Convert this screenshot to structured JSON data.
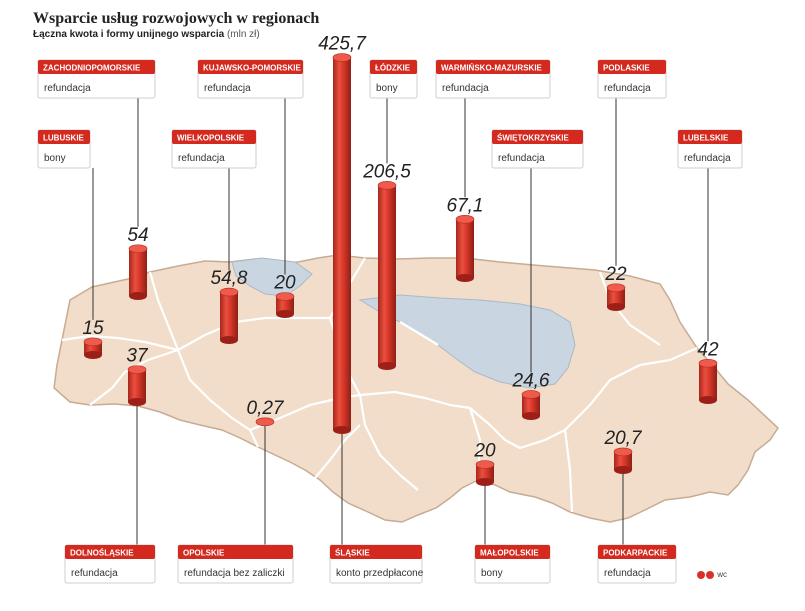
{
  "header": {
    "title": "Wsparcie usług rozwojowych w regionach",
    "subtitle_main": "Łączna kwota i formy unijnego wsparcia",
    "subtitle_unit": "(mln zł)"
  },
  "credit": "wc",
  "colors": {
    "bar": "#d9382b",
    "bar_dark": "#9c2017",
    "bar_top": "#ee5a4b",
    "land": "#f1ddc9",
    "land_edge": "#c7ab94",
    "lakes": "#c9d6e2",
    "label_head": "#d4291f"
  },
  "chart_data": {
    "type": "bar",
    "title": "Wsparcie usług rozwojowych w regionach",
    "subtitle": "Łączna kwota i formy unijnego wsparcia (mln zł)",
    "unit": "mln zł",
    "categories": [
      "Zachodniopomorskie",
      "Lubuskie",
      "Kujawsko-pomorskie",
      "Wielkopolskie",
      "Łódzkie",
      "Śląskie",
      "Warmińsko-mazurskie",
      "Świętokrzyskie",
      "Podlaskie",
      "Lubelskie",
      "Dolnośląskie",
      "Opolskie",
      "Małopolskie",
      "Podkarpackie"
    ],
    "values": [
      54,
      15,
      20,
      54.8,
      206.5,
      425.7,
      67.1,
      24.6,
      22,
      42,
      37,
      0.27,
      20,
      20.7
    ],
    "regions": [
      {
        "id": "zachodniopomorskie",
        "name": "ZACHODNIOPOMORSKIE",
        "form": "refundacja",
        "value": 54,
        "value_label": "54"
      },
      {
        "id": "lubuskie",
        "name": "LUBUSKIE",
        "form": "bony",
        "value": 15,
        "value_label": "15"
      },
      {
        "id": "kujawsko-pomorskie",
        "name": "KUJAWSKO-POMORSKIE",
        "form": "refundacja",
        "value": 20,
        "value_label": "20"
      },
      {
        "id": "wielkopolskie",
        "name": "WIELKOPOLSKIE",
        "form": "refundacja",
        "value": 54.8,
        "value_label": "54,8"
      },
      {
        "id": "lodzkie",
        "name": "ŁÓDZKIE",
        "form": "bony",
        "value": 206.5,
        "value_label": "206,5"
      },
      {
        "id": "slaskie",
        "name": "ŚLĄSKIE",
        "form": "konto przedpłacone",
        "value": 425.7,
        "value_label": "425,7"
      },
      {
        "id": "warminsko-mazurskie",
        "name": "WARMIŃSKO-MAZURSKIE",
        "form": "refundacja",
        "value": 67.1,
        "value_label": "67,1"
      },
      {
        "id": "swietokrzyskie",
        "name": "ŚWIĘTOKRZYSKIE",
        "form": "refundacja",
        "value": 24.6,
        "value_label": "24,6"
      },
      {
        "id": "podlaskie",
        "name": "PODLASKIE",
        "form": "refundacja",
        "value": 22,
        "value_label": "22"
      },
      {
        "id": "lubelskie",
        "name": "LUBELSKIE",
        "form": "refundacja",
        "value": 42,
        "value_label": "42"
      },
      {
        "id": "dolnoslaskie",
        "name": "DOLNOŚLĄSKIE",
        "form": "refundacja",
        "value": 37,
        "value_label": "37"
      },
      {
        "id": "opolskie",
        "name": "OPOLSKIE",
        "form": "refundacja bez zaliczki",
        "value": 0.27,
        "value_label": "0,27"
      },
      {
        "id": "malopolskie",
        "name": "MAŁOPOLSKIE",
        "form": "bony",
        "value": 20,
        "value_label": "20"
      },
      {
        "id": "podkarpackie",
        "name": "PODKARPACKIE",
        "form": "refundacja",
        "value": 20.7,
        "value_label": "20,7"
      }
    ]
  }
}
